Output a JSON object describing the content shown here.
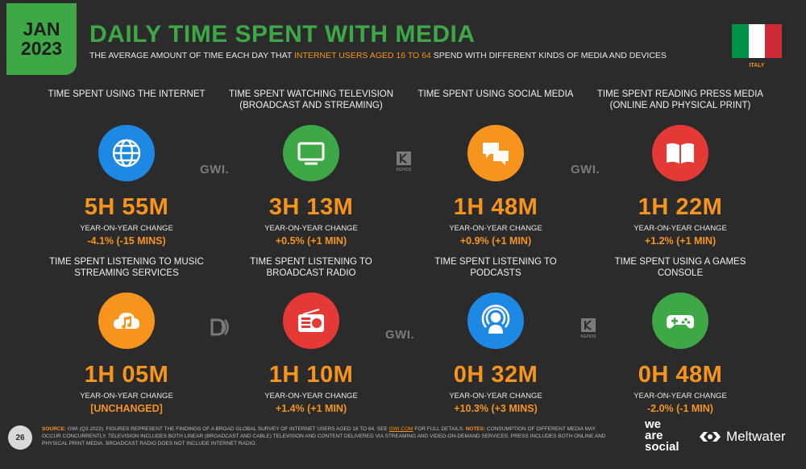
{
  "header": {
    "date_line1": "JAN",
    "date_line2": "2023",
    "title": "DAILY TIME SPENT WITH MEDIA",
    "subtitle_pre": "THE AVERAGE AMOUNT OF TIME EACH DAY THAT ",
    "subtitle_highlight": "INTERNET USERS AGED 16 TO 64",
    "subtitle_post": " SPEND WITH DIFFERENT KINDS OF MEDIA AND DEVICES"
  },
  "country": {
    "label": "ITALY",
    "flag_colors": [
      "#009246",
      "#ffffff",
      "#ce2b37"
    ]
  },
  "colors": {
    "accent_orange": "#f7941d",
    "brand_green": "#3ea847",
    "background": "#2b2b2b"
  },
  "metrics": [
    {
      "label": "TIME SPENT USING THE INTERNET",
      "icon": "globe-icon",
      "icon_color": "#1e88e5",
      "value": "5H 55M",
      "yoy_label": "YEAR-ON-YEAR CHANGE",
      "yoy_value": "-4.1% (-15 MINS)"
    },
    {
      "label": "TIME SPENT WATCHING TELEVISION (BROADCAST AND STREAMING)",
      "icon": "television-icon",
      "icon_color": "#3ea847",
      "value": "3H 13M",
      "yoy_label": "YEAR-ON-YEAR CHANGE",
      "yoy_value": "+0.5% (+1 MIN)"
    },
    {
      "label": "TIME SPENT USING SOCIAL MEDIA",
      "icon": "chat-bubbles-icon",
      "icon_color": "#f7941d",
      "value": "1H 48M",
      "yoy_label": "YEAR-ON-YEAR CHANGE",
      "yoy_value": "+0.9% (+1 MIN)"
    },
    {
      "label": "TIME SPENT READING PRESS MEDIA (ONLINE AND PHYSICAL PRINT)",
      "icon": "book-icon",
      "icon_color": "#e53935",
      "value": "1H 22M",
      "yoy_label": "YEAR-ON-YEAR CHANGE",
      "yoy_value": "+1.2% (+1 MIN)"
    },
    {
      "label": "TIME SPENT LISTENING TO MUSIC STREAMING SERVICES",
      "icon": "cloud-music-icon",
      "icon_color": "#f7941d",
      "value": "1H 05M",
      "yoy_label": "YEAR-ON-YEAR CHANGE",
      "yoy_value": "[UNCHANGED]"
    },
    {
      "label": "TIME SPENT LISTENING TO BROADCAST RADIO",
      "icon": "radio-icon",
      "icon_color": "#e53935",
      "value": "1H 10M",
      "yoy_label": "YEAR-ON-YEAR CHANGE",
      "yoy_value": "+1.4% (+1 MIN)"
    },
    {
      "label": "TIME SPENT LISTENING TO PODCASTS",
      "icon": "podcast-icon",
      "icon_color": "#1e88e5",
      "value": "0H 32M",
      "yoy_label": "YEAR-ON-YEAR CHANGE",
      "yoy_value": "+10.3% (+3 MINS)"
    },
    {
      "label": "TIME SPENT USING A GAMES CONSOLE",
      "icon": "gamepad-icon",
      "icon_color": "#3ea847",
      "value": "0H 48M",
      "yoy_label": "YEAR-ON-YEAR CHANGE",
      "yoy_value": "-2.0% (-1 MIN)"
    }
  ],
  "watermarks": {
    "gwi": "GWI.",
    "kepios": "KEPIOS"
  },
  "footer": {
    "page_number": "26",
    "source_label": "SOURCE:",
    "source_text_1": " GWI (Q3 2022). FIGURES REPRESENT THE FINDINGS OF A BROAD GLOBAL SURVEY OF INTERNET USERS AGED 16 TO 64. SEE ",
    "source_link": "GWI.COM",
    "source_text_2": " FOR FULL DETAILS. ",
    "notes_label": "NOTES:",
    "notes_text": " CONSUMPTION OF DIFFERENT MEDIA MAY OCCUR CONCURRENTLY. TELEVISION INCLUDES BOTH LINEAR (BROADCAST AND CABLE) TELEVISION AND CONTENT DELIVERED VIA STREAMING AND VIDEO-ON-DEMAND SERVICES. PRESS INCLUDES BOTH ONLINE AND PHYSICAL PRINT MEDIA. BROADCAST RADIO DOES NOT INCLUDE INTERNET RADIO.",
    "brand_we": "we",
    "brand_are": "are",
    "brand_social": "social",
    "brand_meltwater": "Meltwater"
  }
}
